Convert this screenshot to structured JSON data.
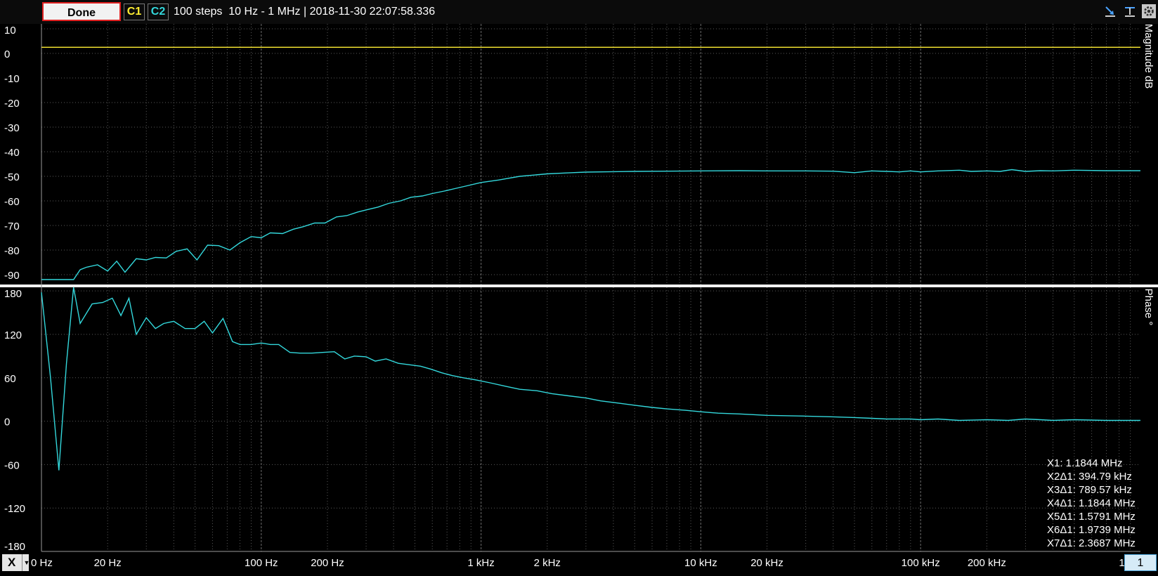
{
  "toolbar": {
    "done_label": "Done",
    "channel1_label": "C1",
    "channel2_label": "C2",
    "info_text": "100 steps  10 Hz - 1 MHz | 2018-11-30 22:07:58.336",
    "x_button_label": "X",
    "page_value": "1"
  },
  "colors": {
    "channel1": "#ffee33",
    "channel2": "#33d8dc",
    "grid": "#5a5a5a",
    "background": "#000000"
  },
  "readouts": [
    "X1: 1.1844 MHz",
    "X2Δ1: 394.79 kHz",
    "X3Δ1: 789.57 kHz",
    "X4Δ1: 1.1844 MHz",
    "X5Δ1: 1.5791 MHz",
    "X6Δ1: 1.9739 MHz",
    "X7Δ1: 2.3687 MHz"
  ],
  "chart_data": [
    {
      "type": "line",
      "ylabel": "Magnitude dB",
      "x_scale": "log",
      "xlim": [
        10,
        1000000
      ],
      "ylim": [
        -94,
        12
      ],
      "yticks": [
        10,
        0,
        -10,
        -20,
        -30,
        -40,
        -50,
        -60,
        -70,
        -80,
        -90
      ],
      "ytick_labels": [
        "10",
        "0",
        "-10",
        "-20",
        "-30",
        "-40",
        "-50",
        "-60",
        "-70",
        "-80",
        "-90"
      ],
      "grid": true,
      "series": [
        {
          "color": "#ffee33",
          "x": [
            10,
            5000,
            10000,
            1000000
          ],
          "y": [
            2.5,
            2.5,
            2.5,
            2.5
          ]
        },
        {
          "color": "#33d8dc",
          "x": [
            10,
            11,
            12,
            14,
            15,
            16,
            18,
            20,
            22,
            24,
            27,
            30,
            33,
            37,
            41,
            46,
            51,
            57,
            64,
            72,
            80,
            90,
            100,
            110,
            125,
            140,
            155,
            175,
            195,
            220,
            245,
            275,
            305,
            340,
            380,
            430,
            480,
            540,
            600,
            680,
            760,
            850,
            1000,
            1200,
            1500,
            2000,
            2500,
            3000,
            4000,
            5000,
            7000,
            10000,
            15000,
            20000,
            30000,
            40000,
            50000,
            60000,
            70000,
            80000,
            90000,
            100000,
            120000,
            150000,
            170000,
            200000,
            230000,
            260000,
            300000,
            350000,
            400000,
            500000,
            700000,
            1000000
          ],
          "y": [
            -92,
            -92,
            -92,
            -92,
            -88,
            -87,
            -86,
            -88.5,
            -84.5,
            -89,
            -83.5,
            -84,
            -83,
            -83.2,
            -80.5,
            -79.5,
            -84,
            -78,
            -78.2,
            -80,
            -77,
            -74.5,
            -75,
            -73,
            -73.3,
            -71.5,
            -70.5,
            -69,
            -69,
            -66.5,
            -66,
            -64.5,
            -63.5,
            -62.5,
            -61,
            -60,
            -58.5,
            -58,
            -57,
            -56,
            -55,
            -54,
            -52.5,
            -51.5,
            -50,
            -49,
            -48.6,
            -48.3,
            -48.1,
            -48,
            -47.9,
            -47.8,
            -47.7,
            -47.8,
            -47.8,
            -47.9,
            -48.5,
            -47.8,
            -48,
            -48.2,
            -47.8,
            -48.2,
            -47.8,
            -47.5,
            -48,
            -47.8,
            -48,
            -47.3,
            -48,
            -47.7,
            -47.8,
            -47.5,
            -47.7,
            -47.7
          ]
        }
      ]
    },
    {
      "type": "line",
      "ylabel": "Phase °",
      "x_scale": "log",
      "xlim": [
        10,
        1000000
      ],
      "ylim": [
        -180,
        185
      ],
      "yticks": [
        180,
        120,
        60,
        0,
        -60,
        -120,
        -180
      ],
      "ytick_labels": [
        "180",
        "120",
        "60",
        "0",
        "-60",
        "-120",
        "-180"
      ],
      "xticks": [
        10,
        20,
        100,
        200,
        1000,
        2000,
        10000,
        20000,
        100000,
        200000,
        1000000
      ],
      "xtick_labels": [
        "0 Hz",
        "20 Hz",
        "100 Hz",
        "200 Hz",
        "1 kHz",
        "2 kHz",
        "10 kHz",
        "20 kHz",
        "100 kHz",
        "200 kHz",
        "1 I"
      ],
      "grid": true,
      "series": [
        {
          "color": "#33d8dc",
          "x": [
            10,
            11,
            12,
            13,
            14,
            15,
            17,
            19,
            21,
            23,
            25,
            27,
            30,
            33,
            36,
            40,
            45,
            50,
            55,
            60,
            67,
            74,
            80,
            90,
            100,
            110,
            120,
            135,
            150,
            170,
            190,
            215,
            240,
            265,
            300,
            330,
            370,
            420,
            470,
            530,
            590,
            660,
            740,
            830,
            950,
            1100,
            1300,
            1500,
            1800,
            2100,
            2500,
            3000,
            3500,
            4200,
            5000,
            6000,
            7000,
            8500,
            10000,
            12000,
            15000,
            20000,
            30000,
            40000,
            50000,
            60000,
            70000,
            80000,
            90000,
            100000,
            120000,
            150000,
            200000,
            250000,
            300000,
            350000,
            400000,
            500000,
            700000,
            1000000
          ],
          "y": [
            178,
            60,
            -68,
            80,
            185,
            135,
            162,
            164,
            170,
            146,
            170,
            120,
            143,
            128,
            135,
            138,
            128,
            128,
            138,
            122,
            142,
            110,
            106,
            106,
            108,
            106,
            106,
            95,
            94,
            94,
            95,
            96,
            86,
            90,
            89,
            83,
            86,
            80,
            78,
            76,
            72,
            67,
            63,
            60,
            57,
            53,
            48,
            44,
            42,
            38,
            35,
            32,
            28,
            25,
            22,
            19,
            17,
            15,
            13,
            11,
            10,
            8,
            7,
            6,
            5,
            4,
            3,
            3,
            3,
            2,
            3,
            1,
            2,
            1,
            3,
            2,
            1,
            2,
            1,
            1
          ]
        }
      ]
    }
  ]
}
